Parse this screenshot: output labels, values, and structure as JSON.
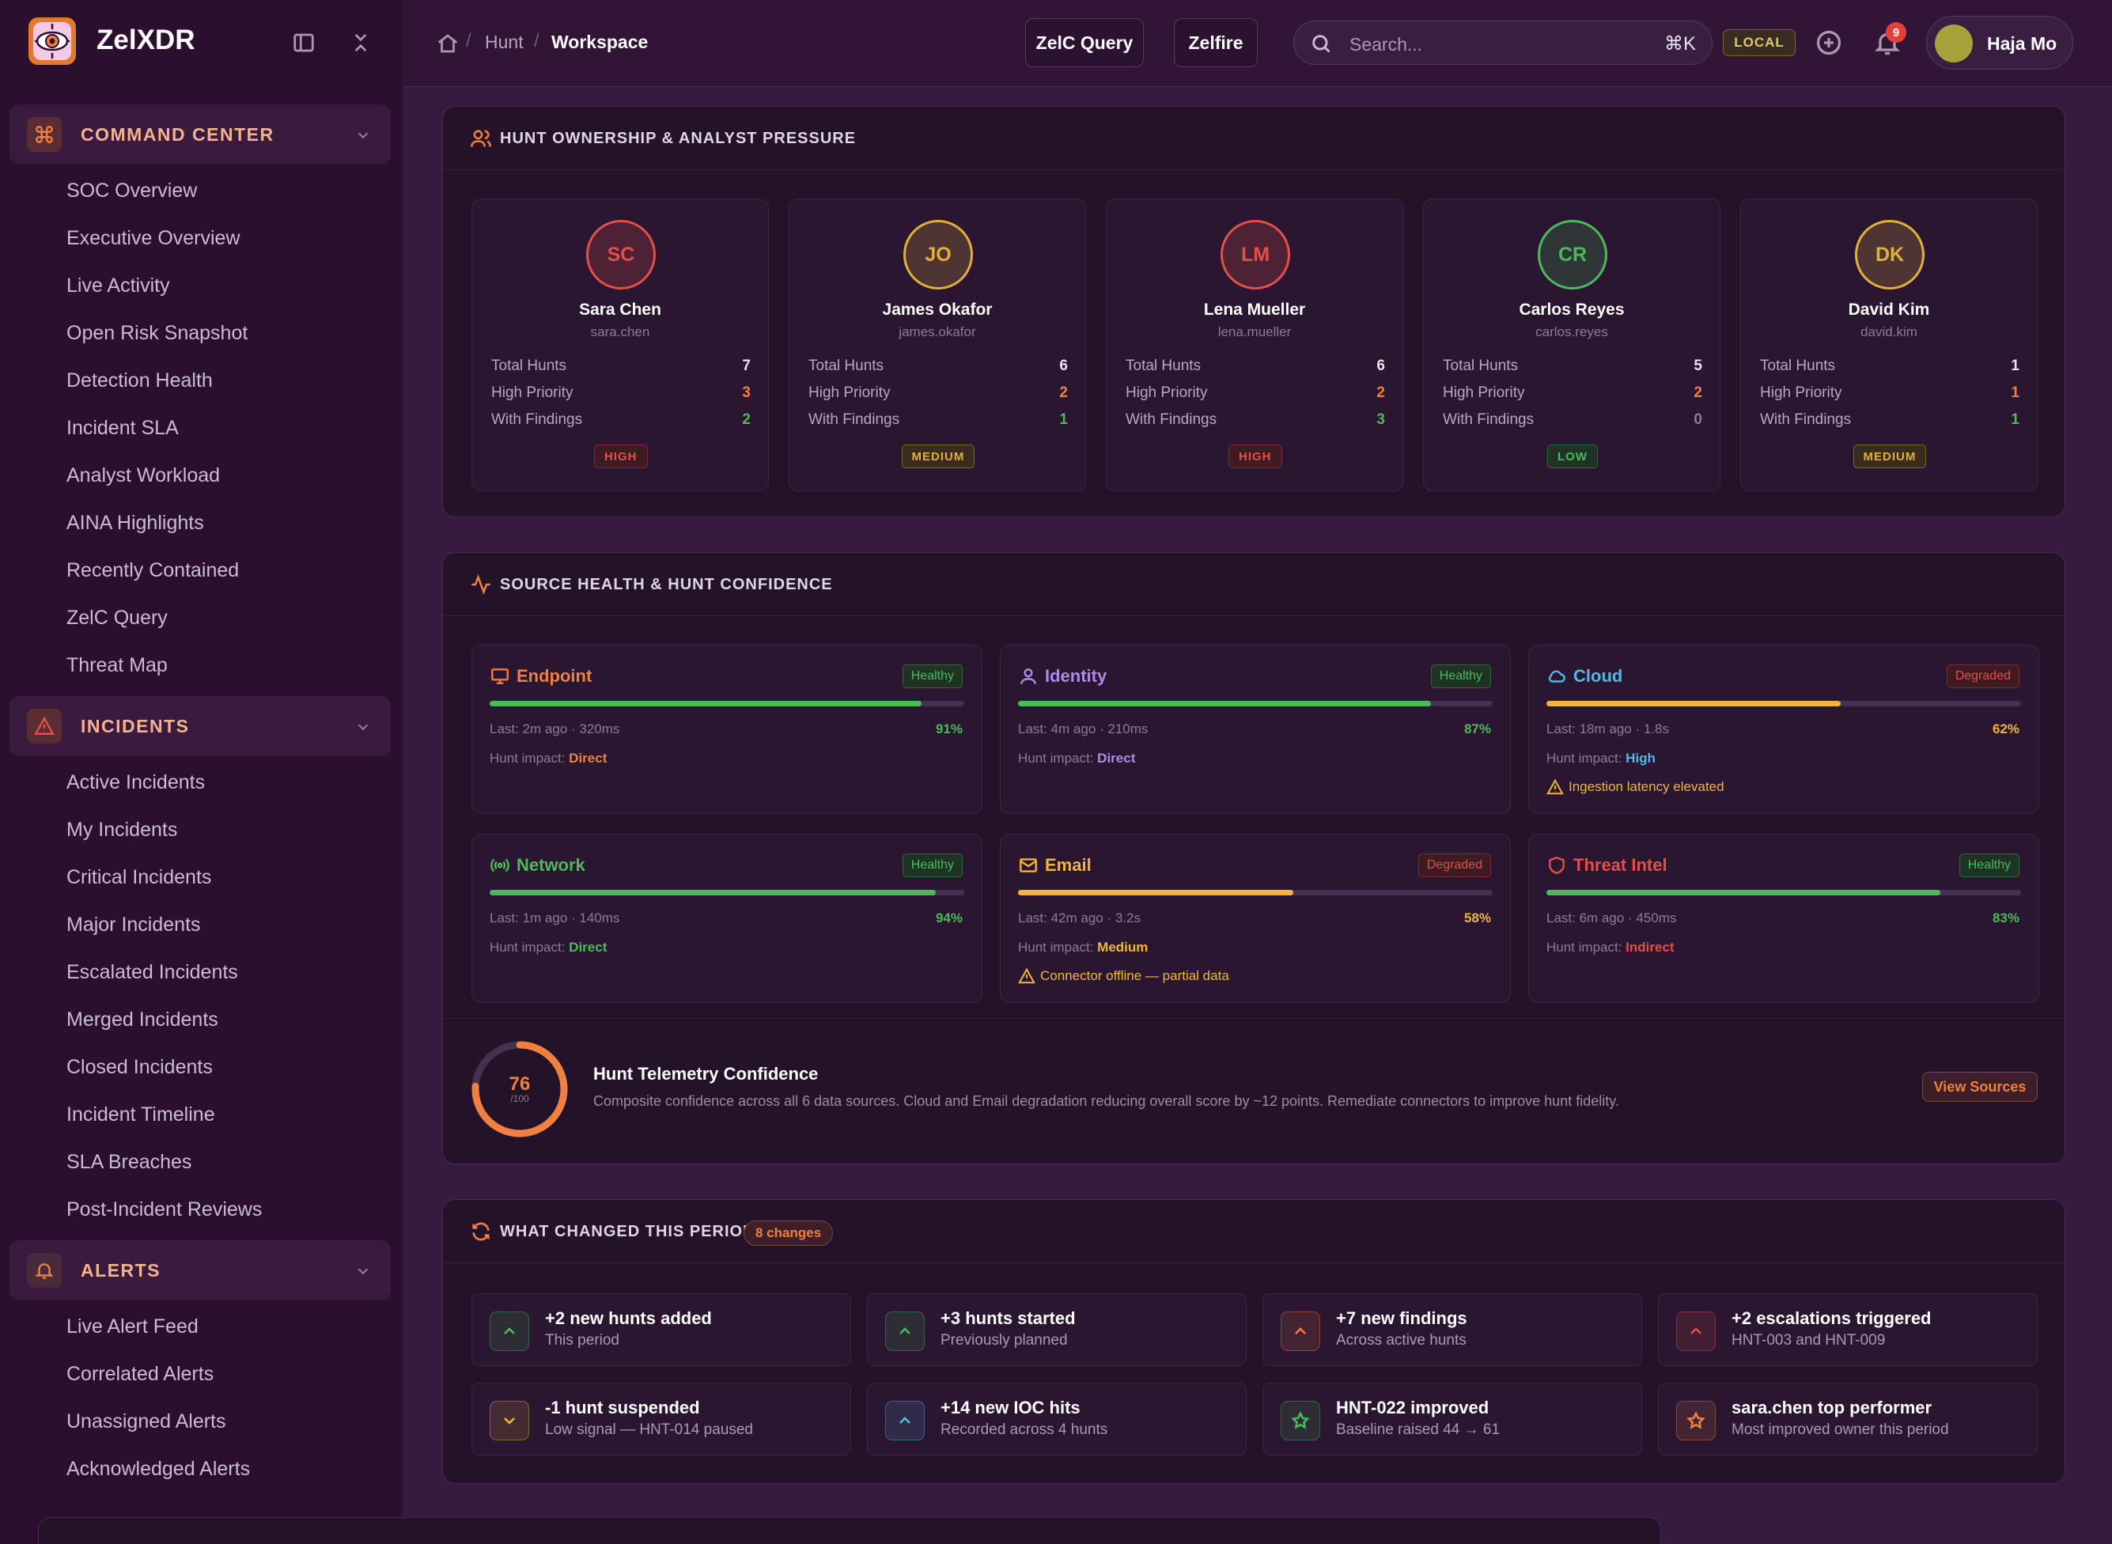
{
  "app": {
    "name": "ZelXDR"
  },
  "sidebar": {
    "groups": {
      "command_center": {
        "label": "COMMAND CENTER",
        "items": [
          "SOC Overview",
          "Executive Overview",
          "Live Activity",
          "Open Risk Snapshot",
          "Detection Health",
          "Incident SLA",
          "Analyst Workload",
          "AINA Highlights",
          "Recently Contained",
          "ZelC Query",
          "Threat Map"
        ]
      },
      "incidents": {
        "label": "INCIDENTS",
        "items": [
          "Active Incidents",
          "My Incidents",
          "Critical Incidents",
          "Major Incidents",
          "Escalated Incidents",
          "Merged Incidents",
          "Closed Incidents",
          "Incident Timeline",
          "SLA Breaches",
          "Post-Incident Reviews"
        ]
      },
      "alerts": {
        "label": "ALERTS",
        "items": [
          "Live Alert Feed",
          "Correlated Alerts",
          "Unassigned Alerts",
          "Acknowledged Alerts"
        ]
      }
    }
  },
  "topbar": {
    "breadcrumb": [
      "Hunt",
      "Workspace"
    ],
    "query_button": "ZelC Query",
    "zelfire_button": "Zelfire",
    "search": {
      "placeholder": "Search...",
      "shortcut": "⌘K"
    },
    "env_badge": "LOCAL",
    "notification_count": "9",
    "user_name": "Haja Mo"
  },
  "ownership": {
    "title": "HUNT OWNERSHIP & ANALYST PRESSURE",
    "row_labels": {
      "total": "Total Hunts",
      "high": "High Priority",
      "findings": "With Findings"
    },
    "analysts": [
      {
        "initials": "SC",
        "name": "Sara Chen",
        "username": "sara.chen",
        "total": "7",
        "high": "3",
        "findings": "2",
        "pressure": "HIGH",
        "color": "#e2504a"
      },
      {
        "initials": "JO",
        "name": "James Okafor",
        "username": "james.okafor",
        "total": "6",
        "high": "2",
        "findings": "1",
        "pressure": "MEDIUM",
        "color": "#e2b03a"
      },
      {
        "initials": "LM",
        "name": "Lena Mueller",
        "username": "lena.mueller",
        "total": "6",
        "high": "2",
        "findings": "3",
        "pressure": "HIGH",
        "color": "#e2504a"
      },
      {
        "initials": "CR",
        "name": "Carlos Reyes",
        "username": "carlos.reyes",
        "total": "5",
        "high": "2",
        "findings": "0",
        "pressure": "LOW",
        "color": "#4cba5a"
      },
      {
        "initials": "DK",
        "name": "David Kim",
        "username": "david.kim",
        "total": "1",
        "high": "1",
        "findings": "1",
        "pressure": "MEDIUM",
        "color": "#e2b03a"
      }
    ]
  },
  "source_health": {
    "title": "SOURCE HEALTH & HUNT CONFIDENCE",
    "impact_label": "Hunt impact:",
    "sources": [
      {
        "name": "Endpoint",
        "status": "Healthy",
        "last": "Last: 2m ago · 320ms",
        "pct": "91%",
        "value": 91,
        "impact": "Direct",
        "color": "#f08040",
        "bar": "#4cba5a",
        "pct_color": "#4cba5a",
        "impact_color": "#f08040",
        "warning": ""
      },
      {
        "name": "Identity",
        "status": "Healthy",
        "last": "Last: 4m ago · 210ms",
        "pct": "87%",
        "value": 87,
        "impact": "Direct",
        "color": "#b08ae6",
        "bar": "#4cba5a",
        "pct_color": "#4cba5a",
        "impact_color": "#b08ae6",
        "warning": ""
      },
      {
        "name": "Cloud",
        "status": "Degraded",
        "last": "Last: 18m ago · 1.8s",
        "pct": "62%",
        "value": 62,
        "impact": "High",
        "color": "#56b6e6",
        "bar": "#f2b53c",
        "pct_color": "#f2b53c",
        "impact_color": "#56b6e6",
        "warning": "Ingestion latency elevated"
      },
      {
        "name": "Network",
        "status": "Healthy",
        "last": "Last: 1m ago · 140ms",
        "pct": "94%",
        "value": 94,
        "impact": "Direct",
        "color": "#4cba5a",
        "bar": "#4cba5a",
        "pct_color": "#4cba5a",
        "impact_color": "#4cba5a",
        "warning": ""
      },
      {
        "name": "Email",
        "status": "Degraded",
        "last": "Last: 42m ago · 3.2s",
        "pct": "58%",
        "value": 58,
        "impact": "Medium",
        "color": "#f2b53c",
        "bar": "#f2b53c",
        "pct_color": "#f2b53c",
        "impact_color": "#f2b53c",
        "warning": "Connector offline — partial data"
      },
      {
        "name": "Threat Intel",
        "status": "Healthy",
        "last": "Last: 6m ago · 450ms",
        "pct": "83%",
        "value": 83,
        "impact": "Indirect",
        "color": "#e2504a",
        "bar": "#4cba5a",
        "pct_color": "#4cba5a",
        "impact_color": "#e2504a",
        "warning": ""
      }
    ],
    "confidence": {
      "score": "76",
      "value": 76,
      "max_label": "/100",
      "title": "Hunt Telemetry Confidence",
      "description": "Composite confidence across all 6 data sources. Cloud and Email degradation reducing overall score by ~12 points. Remediate connectors to improve hunt fidelity.",
      "button": "View Sources"
    }
  },
  "changes": {
    "title": "WHAT CHANGED THIS PERIOD",
    "count_badge": "8 changes",
    "items": [
      {
        "title": "+2 new hunts added",
        "subtitle": "This period",
        "icon": "chevron-up-icon",
        "color": "#4cba5a"
      },
      {
        "title": "+3 hunts started",
        "subtitle": "Previously planned",
        "icon": "chevron-up-icon",
        "color": "#4cba5a"
      },
      {
        "title": "+7 new findings",
        "subtitle": "Across active hunts",
        "icon": "chevron-up-icon",
        "color": "#f08040"
      },
      {
        "title": "+2 escalations triggered",
        "subtitle": "HNT-003 and HNT-009",
        "icon": "chevron-up-icon",
        "color": "#e2504a"
      },
      {
        "title": "-1 hunt suspended",
        "subtitle": "Low signal — HNT-014 paused",
        "icon": "chevron-down-icon",
        "color": "#f2b53c"
      },
      {
        "title": "+14 new IOC hits",
        "subtitle": "Recorded across 4 hunts",
        "icon": "chevron-up-icon",
        "color": "#56b6e6"
      },
      {
        "title": "HNT-022 improved",
        "subtitle": "Baseline raised 44 → 61",
        "icon": "star-icon",
        "color": "#4cba5a"
      },
      {
        "title": "sara.chen top performer",
        "subtitle": "Most improved owner this period",
        "icon": "star-icon",
        "color": "#f08040"
      }
    ]
  }
}
